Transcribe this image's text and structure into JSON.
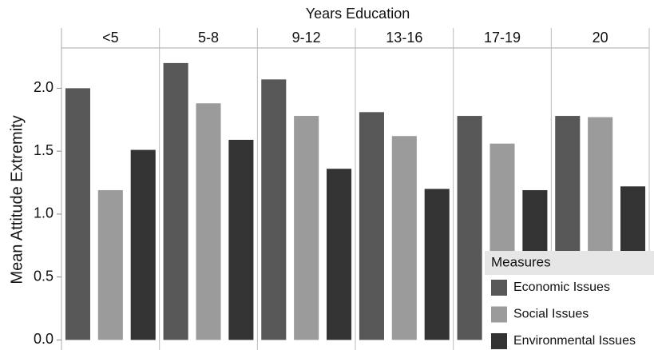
{
  "chart_data": {
    "type": "bar",
    "x_label": "Years Education",
    "y_label": "Mean Attitude Extremity",
    "categories": [
      "<5",
      "5-8",
      "9-12",
      "13-16",
      "17-19",
      "20"
    ],
    "series": [
      {
        "name": "Economic Issues",
        "color": "#575757",
        "values": [
          2.0,
          2.2,
          2.07,
          1.81,
          1.78,
          1.78
        ]
      },
      {
        "name": "Social Issues",
        "color": "#9b9b9b",
        "values": [
          1.19,
          1.88,
          1.78,
          1.62,
          1.56,
          1.77
        ]
      },
      {
        "name": "Environmental Issues",
        "color": "#333333",
        "values": [
          1.51,
          1.59,
          1.36,
          1.2,
          1.19,
          1.22
        ]
      }
    ],
    "legend_title": "Measures",
    "legend_position": "lower right",
    "ylim": [
      -0.08,
      2.32
    ],
    "yticks": [
      {
        "value": 0,
        "label": "0.0"
      },
      0.5,
      {
        "value": 1,
        "label": "1.0"
      },
      1.5,
      {
        "value": 2,
        "label": "2.0"
      }
    ]
  }
}
